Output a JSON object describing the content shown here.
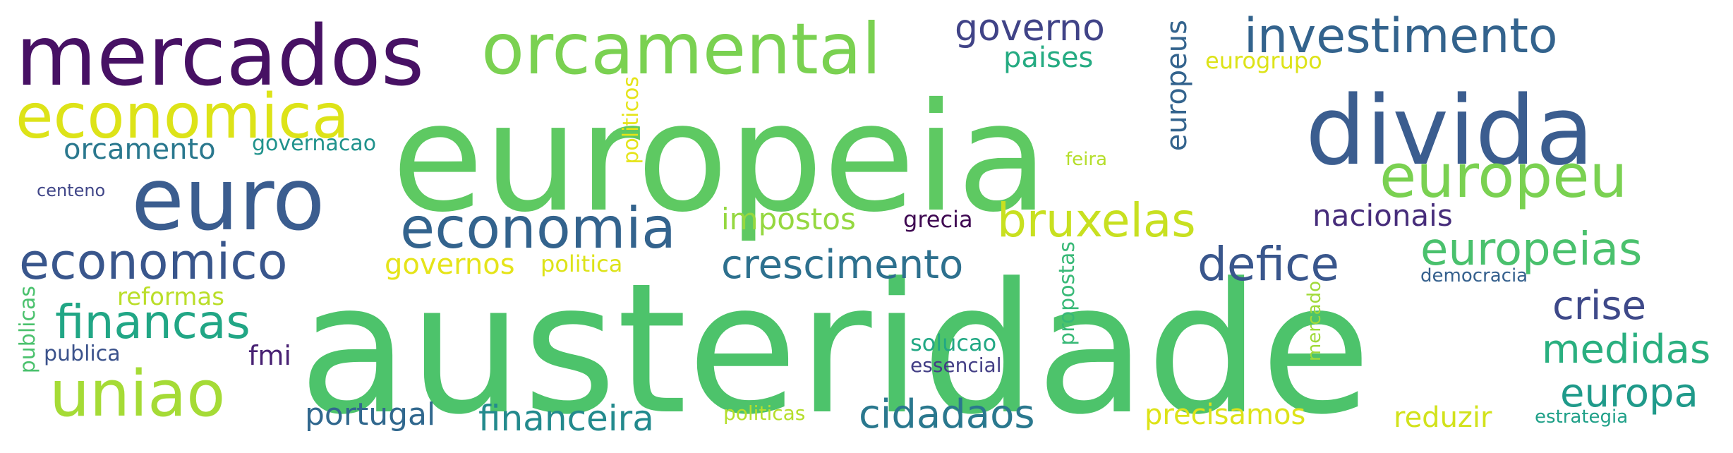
{
  "words": [
    {
      "text": "austeridade",
      "color": "#4dc36b"
    },
    {
      "text": "europeia",
      "color": "#5ec962"
    },
    {
      "text": "divida",
      "color": "#3b5d8f"
    },
    {
      "text": "mercados",
      "color": "#471164"
    },
    {
      "text": "orcamental",
      "color": "#7ad151"
    },
    {
      "text": "euro",
      "color": "#3b5d8f"
    },
    {
      "text": "economica",
      "color": "#dde318"
    },
    {
      "text": "investimento",
      "color": "#33638d"
    },
    {
      "text": "europeu",
      "color": "#7ad151"
    },
    {
      "text": "economia",
      "color": "#33638d"
    },
    {
      "text": "economico",
      "color": "#39568c"
    },
    {
      "text": "uniao",
      "color": "#a5db36"
    },
    {
      "text": "financas",
      "color": "#21a685"
    },
    {
      "text": "defice",
      "color": "#39568c"
    },
    {
      "text": "crescimento",
      "color": "#2d708e"
    },
    {
      "text": "bruxelas",
      "color": "#c8e020"
    },
    {
      "text": "europeias",
      "color": "#4ac16d"
    },
    {
      "text": "governo",
      "color": "#404387"
    },
    {
      "text": "crise",
      "color": "#3e4989"
    },
    {
      "text": "medidas",
      "color": "#29af7f"
    },
    {
      "text": "europa",
      "color": "#1f9a8a"
    },
    {
      "text": "cidadaos",
      "color": "#2a788e"
    },
    {
      "text": "financeira",
      "color": "#238a8d"
    },
    {
      "text": "portugal",
      "color": "#31688e"
    },
    {
      "text": "nacionais",
      "color": "#472d7b"
    },
    {
      "text": "orcamento",
      "color": "#2a788e"
    },
    {
      "text": "impostos",
      "color": "#95d840"
    },
    {
      "text": "paises",
      "color": "#25ab82"
    },
    {
      "text": "precisamos",
      "color": "#dde318"
    },
    {
      "text": "reduzir",
      "color": "#d2e21b"
    },
    {
      "text": "governos",
      "color": "#e5e419"
    },
    {
      "text": "europeus",
      "color": "#33638d",
      "vertical": true
    },
    {
      "text": "fmi",
      "color": "#482173"
    },
    {
      "text": "reformas",
      "color": "#bade28"
    },
    {
      "text": "politica",
      "color": "#dde318"
    },
    {
      "text": "eurogrupo",
      "color": "#dde318"
    },
    {
      "text": "politicos",
      "color": "#e5e419",
      "vertical": true
    },
    {
      "text": "propostas",
      "color": "#38b977",
      "vertical": true
    },
    {
      "text": "publicas",
      "color": "#4ac16d",
      "vertical": true
    },
    {
      "text": "mercado",
      "color": "#a0da39",
      "vertical": true
    },
    {
      "text": "solucao",
      "color": "#22a884"
    },
    {
      "text": "governacao",
      "color": "#20928c"
    },
    {
      "text": "grecia",
      "color": "#3e0751"
    },
    {
      "text": "publica",
      "color": "#3b528b"
    },
    {
      "text": "essencial",
      "color": "#433e85"
    },
    {
      "text": "politicas",
      "color": "#b5de2b"
    },
    {
      "text": "democracia",
      "color": "#35608d"
    },
    {
      "text": "feira",
      "color": "#b5de2b"
    },
    {
      "text": "estrategia",
      "color": "#1fa088"
    },
    {
      "text": "centeno",
      "color": "#404688"
    }
  ]
}
